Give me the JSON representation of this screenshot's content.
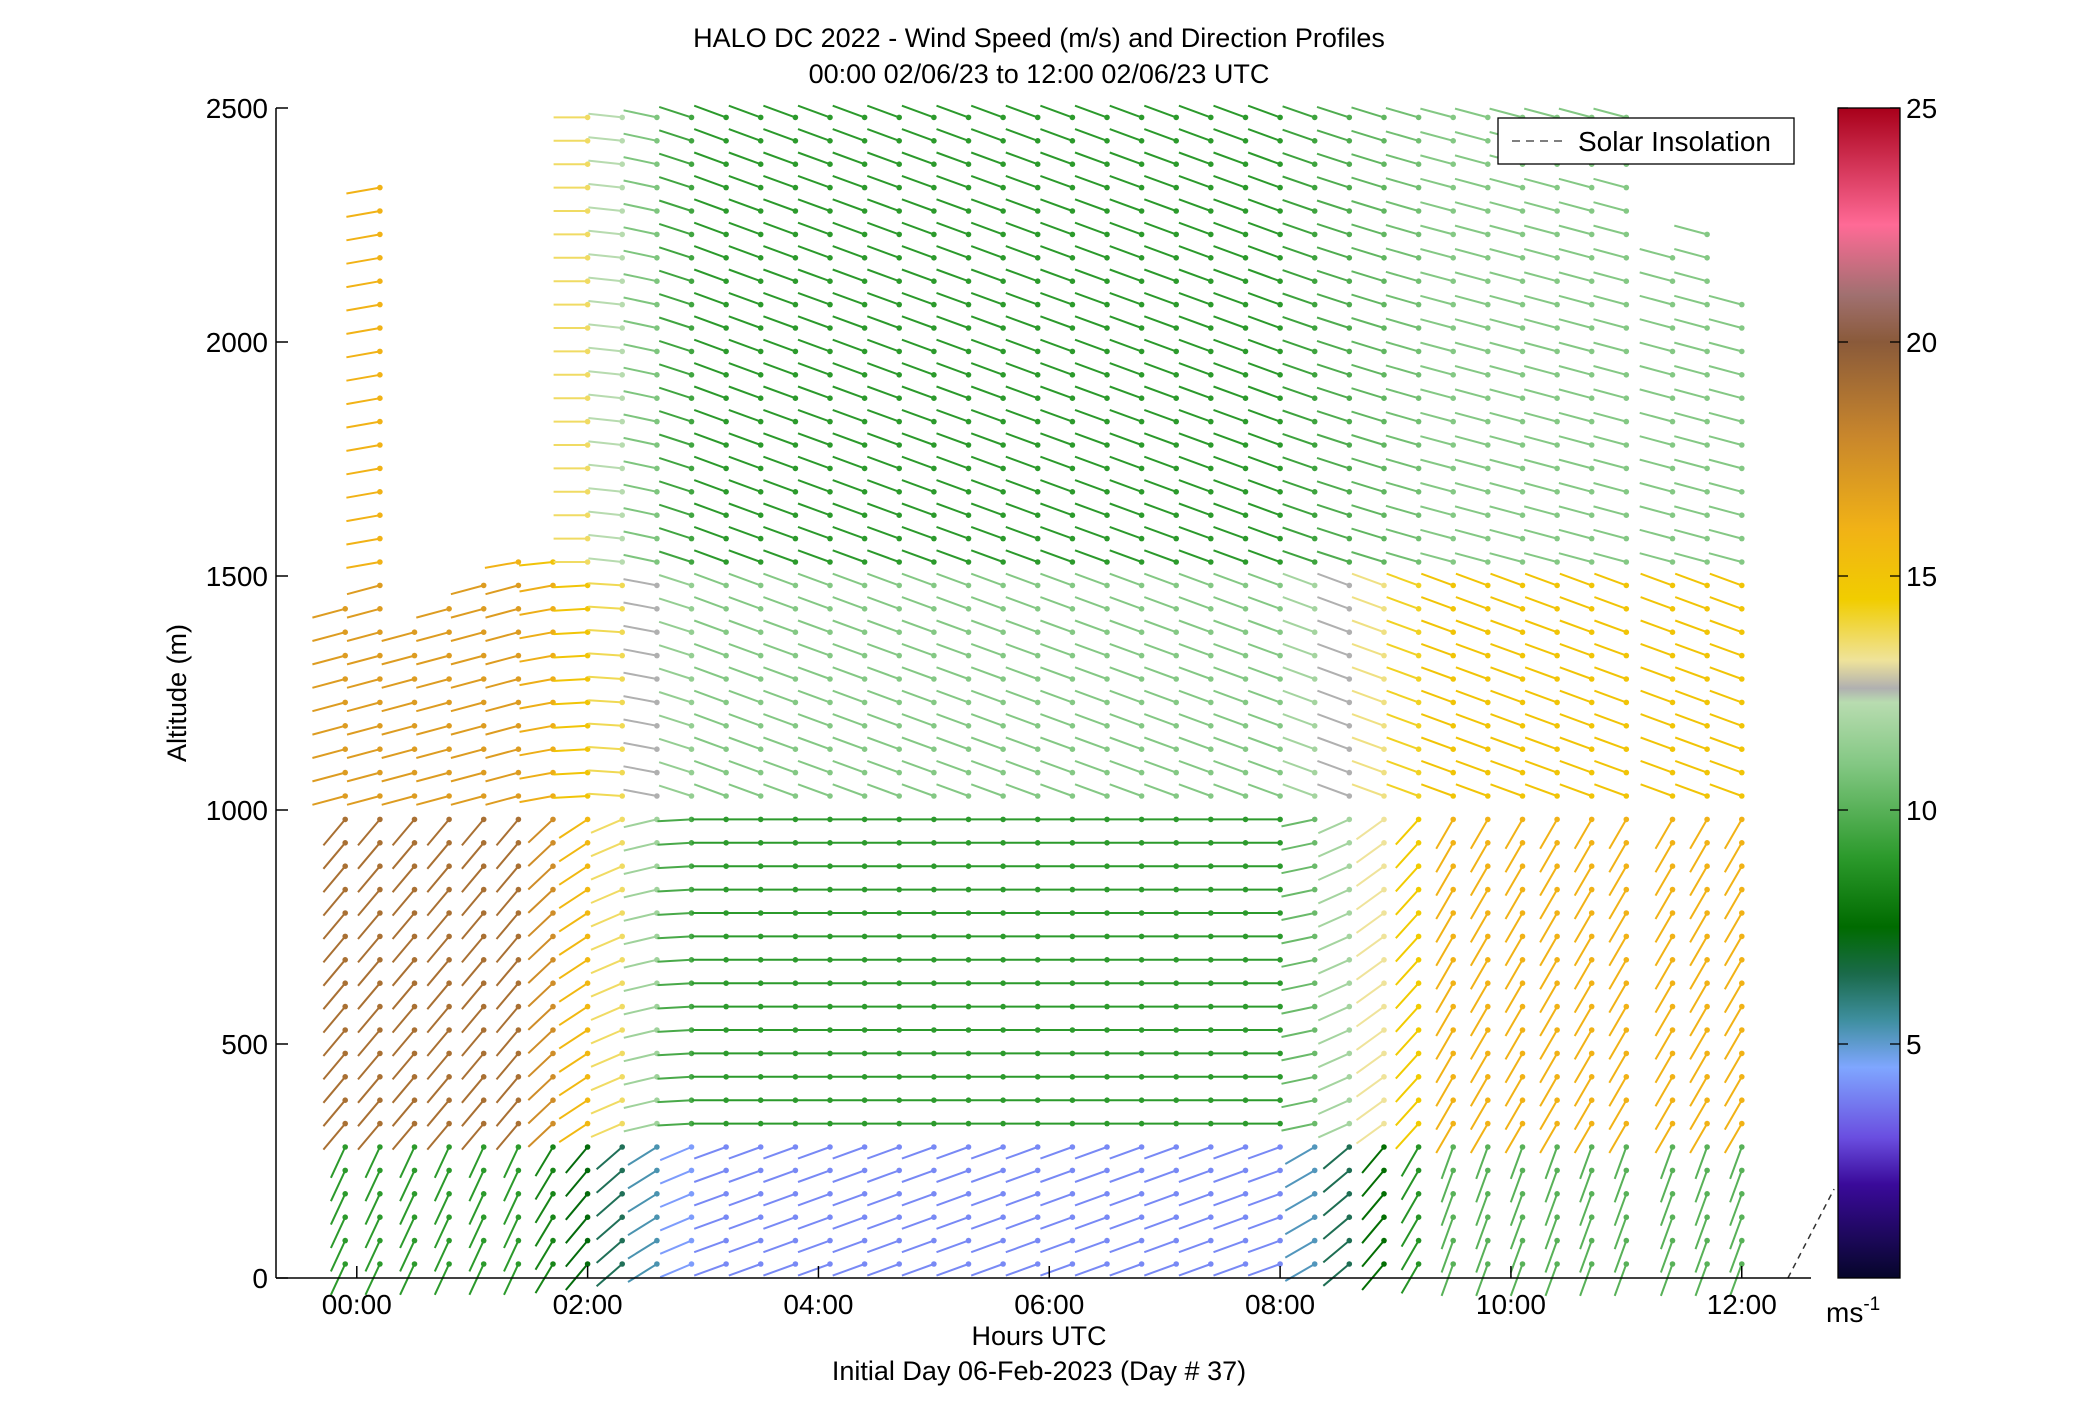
{
  "chart_data": {
    "type": "wind-barb-profile",
    "title": "HALO DC 2022 - Wind Speed (m/s) and Direction Profiles",
    "subtitle": "00:00 02/06/23 to 12:00 02/06/23  UTC",
    "xlabel": "Hours UTC",
    "xlabel2": "Initial Day 06-Feb-2023 (Day # 37)",
    "ylabel": "Altitude (m)",
    "xlim": [
      -0.7,
      12.6
    ],
    "ylim": [
      0,
      2500
    ],
    "x_ticks": [
      0,
      2,
      4,
      6,
      8,
      10,
      12
    ],
    "x_tick_labels": [
      "00:00",
      "02:00",
      "04:00",
      "06:00",
      "08:00",
      "10:00",
      "12:00"
    ],
    "y_ticks": [
      0,
      500,
      1000,
      1500,
      2000,
      2500
    ],
    "y_tick_labels": [
      "0",
      "500",
      "1000",
      "1500",
      "2000",
      "2500"
    ],
    "legend": {
      "label": "Solar Insolation",
      "position": "top-right"
    },
    "colorbar": {
      "range": [
        0,
        25
      ],
      "ticks": [
        5,
        10,
        15,
        20,
        25
      ],
      "tick_labels": [
        "5",
        "10",
        "15",
        "20",
        "25"
      ],
      "unit": "ms",
      "unit_exp": "-1",
      "stops": [
        {
          "v": 0,
          "c": "#06062a"
        },
        {
          "v": 2,
          "c": "#3a0a9a"
        },
        {
          "v": 3,
          "c": "#6a4ee0"
        },
        {
          "v": 4.5,
          "c": "#7fa6ff"
        },
        {
          "v": 5.5,
          "c": "#3f8fa0"
        },
        {
          "v": 6.5,
          "c": "#1a6a4a"
        },
        {
          "v": 7.5,
          "c": "#006b00"
        },
        {
          "v": 9,
          "c": "#2c9a2c"
        },
        {
          "v": 11,
          "c": "#84c884"
        },
        {
          "v": 12.3,
          "c": "#b8dcb0"
        },
        {
          "v": 12.6,
          "c": "#b0b0b0"
        },
        {
          "v": 13.2,
          "c": "#efe39a"
        },
        {
          "v": 14.5,
          "c": "#f1cd00"
        },
        {
          "v": 16,
          "c": "#f1b216"
        },
        {
          "v": 18,
          "c": "#c8862c"
        },
        {
          "v": 20,
          "c": "#8a5a3a"
        },
        {
          "v": 21,
          "c": "#a07070"
        },
        {
          "v": 22.5,
          "c": "#ff6a96"
        },
        {
          "v": 25,
          "c": "#a8001a"
        }
      ]
    },
    "solar_insolation_line": {
      "x": [
        12.4,
        12.8
      ],
      "y": [
        0,
        190
      ]
    },
    "times": [
      -0.1,
      0.2,
      0.5,
      0.8,
      1.1,
      1.4,
      1.7,
      2.0,
      2.3,
      2.6,
      2.9,
      3.2,
      3.5,
      3.8,
      4.1,
      4.4,
      4.7,
      5.0,
      5.3,
      5.6,
      5.9,
      6.2,
      6.5,
      6.8,
      7.1,
      7.4,
      7.7,
      8.0,
      8.3,
      8.6,
      8.9,
      9.2,
      9.5,
      9.8,
      10.1,
      10.4,
      10.7,
      11.0,
      11.4,
      11.7,
      12.0
    ],
    "altitudes_start": 30,
    "altitudes_step": 50,
    "speed_profiles": [
      {
        "from_alt": 0,
        "to_alt": 300,
        "speed_early": 9,
        "speed_mid": 4,
        "speed_late": 10
      },
      {
        "from_alt": 300,
        "to_alt": 1000,
        "speed_early": 19,
        "speed_mid": 9,
        "speed_late": 16
      },
      {
        "from_alt": 1000,
        "to_alt": 1500,
        "speed_early": 17,
        "speed_mid": 11,
        "speed_late": 15
      },
      {
        "from_alt": 1500,
        "to_alt": 2500,
        "speed_early": 16,
        "speed_mid": 9,
        "speed_late": 11
      }
    ],
    "direction_profiles": [
      {
        "from_alt": 0,
        "to_alt": 300,
        "dir_early": 205,
        "dir_mid": 250,
        "dir_late": 200
      },
      {
        "from_alt": 300,
        "to_alt": 1000,
        "dir_early": 220,
        "dir_mid": 270,
        "dir_late": 210
      },
      {
        "from_alt": 1000,
        "to_alt": 1500,
        "dir_early": 255,
        "dir_mid": 290,
        "dir_late": 290
      },
      {
        "from_alt": 1500,
        "to_alt": 2500,
        "dir_early": 260,
        "dir_mid": 290,
        "dir_late": 285
      }
    ],
    "data_top": [
      {
        "t": -0.1,
        "top": 1460
      },
      {
        "t": 0.2,
        "top": 2330
      },
      {
        "t": 0.5,
        "top": 1420
      },
      {
        "t": 0.8,
        "top": 1460
      },
      {
        "t": 1.1,
        "top": 1500
      },
      {
        "t": 1.4,
        "top": 1560
      },
      {
        "t": 1.7,
        "top": 1560
      },
      {
        "t": 2.0,
        "top": 2500
      },
      {
        "t": 2.3,
        "top": 2500
      },
      {
        "t": 2.6,
        "top": 2500
      },
      {
        "t": 2.9,
        "top": 2500
      },
      {
        "t": 3.2,
        "top": 2500
      },
      {
        "t": 3.5,
        "top": 2500
      },
      {
        "t": 3.8,
        "top": 2500
      },
      {
        "t": 4.1,
        "top": 2500
      },
      {
        "t": 4.4,
        "top": 2500
      },
      {
        "t": 4.7,
        "top": 2500
      },
      {
        "t": 5.0,
        "top": 2500
      },
      {
        "t": 5.3,
        "top": 2500
      },
      {
        "t": 5.6,
        "top": 2500
      },
      {
        "t": 5.9,
        "top": 2500
      },
      {
        "t": 6.2,
        "top": 2500
      },
      {
        "t": 6.5,
        "top": 2500
      },
      {
        "t": 6.8,
        "top": 2500
      },
      {
        "t": 7.1,
        "top": 2500
      },
      {
        "t": 7.4,
        "top": 2500
      },
      {
        "t": 7.7,
        "top": 2500
      },
      {
        "t": 8.0,
        "top": 2500
      },
      {
        "t": 8.3,
        "top": 2500
      },
      {
        "t": 8.6,
        "top": 2500
      },
      {
        "t": 8.9,
        "top": 2500
      },
      {
        "t": 9.2,
        "top": 2500
      },
      {
        "t": 9.5,
        "top": 2500
      },
      {
        "t": 9.8,
        "top": 2500
      },
      {
        "t": 10.1,
        "top": 2500
      },
      {
        "t": 10.4,
        "top": 2500
      },
      {
        "t": 10.7,
        "top": 2500
      },
      {
        "t": 11.0,
        "top": 2500
      },
      {
        "t": 11.4,
        "top": 2200
      },
      {
        "t": 11.7,
        "top": 2250
      },
      {
        "t": 12.0,
        "top": 2100
      }
    ]
  }
}
